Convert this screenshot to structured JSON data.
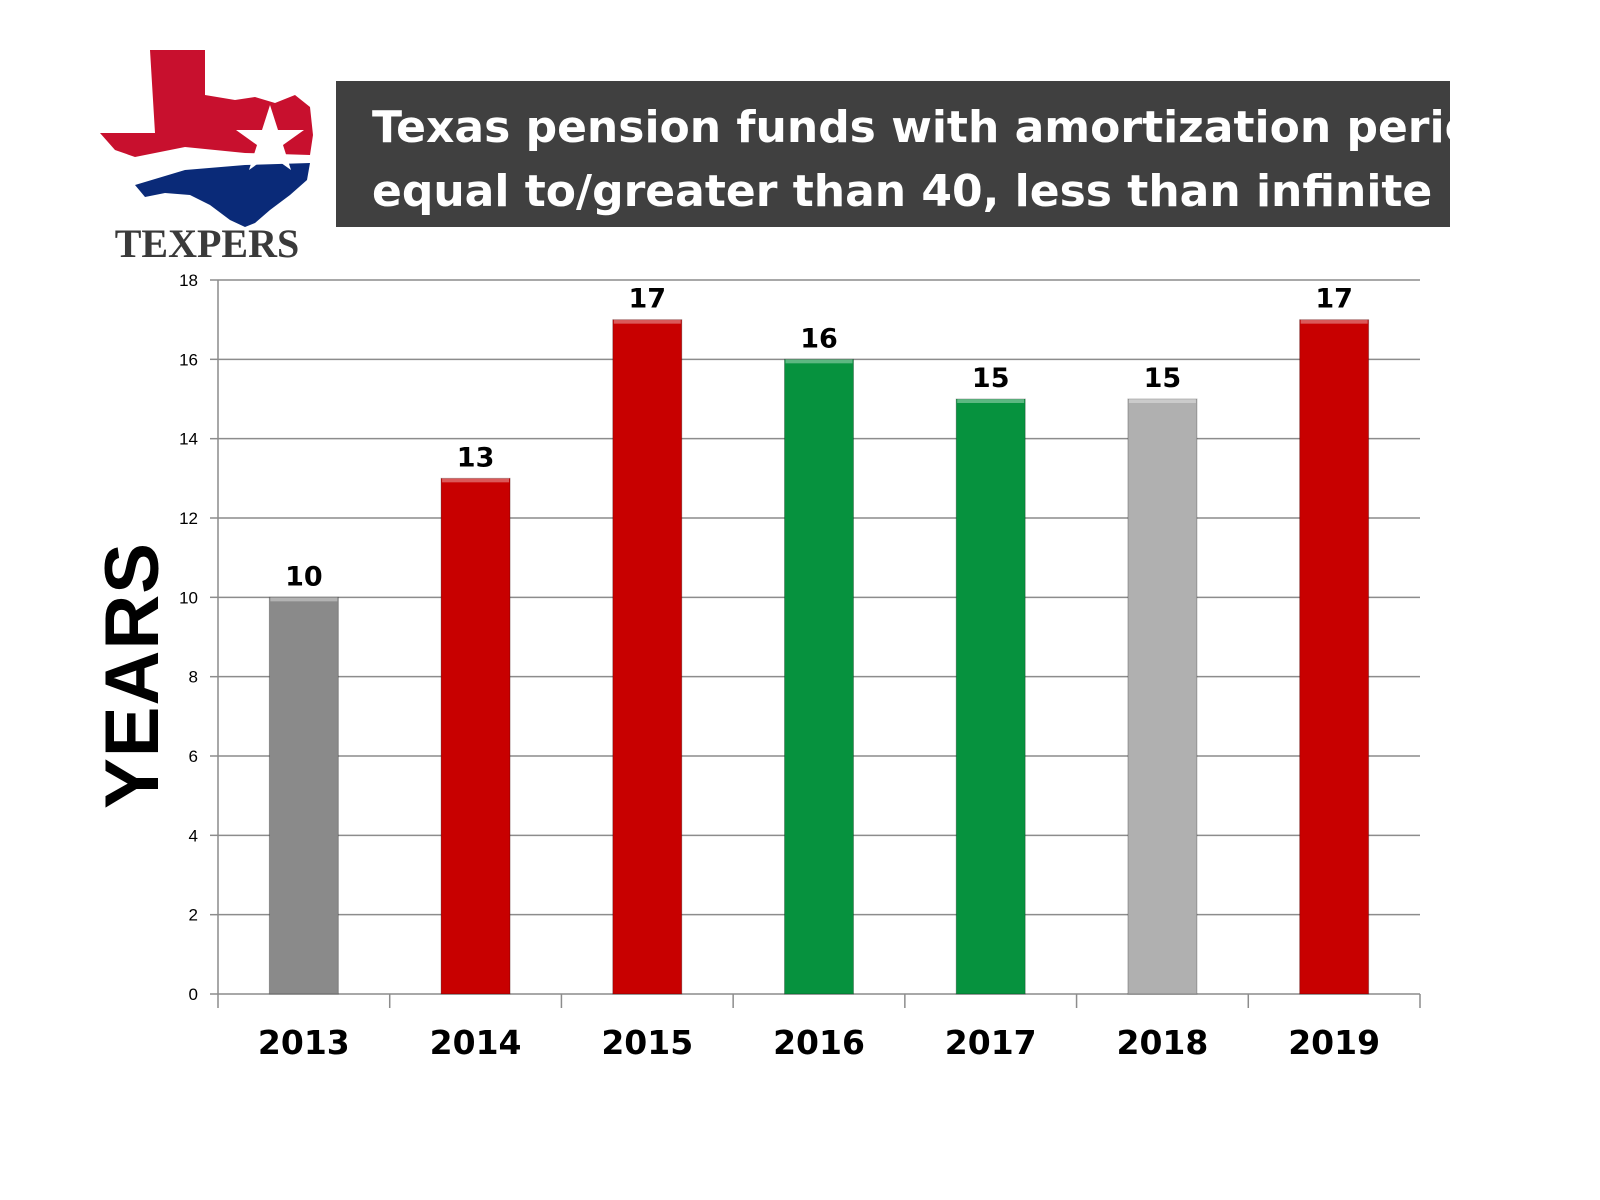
{
  "logo": {
    "text": "TEXPERS",
    "icon": "texas-star-logo"
  },
  "chart_data": {
    "type": "bar",
    "title_lines": [
      "Texas pension funds with amortization periods",
      "equal to/greater than 40, less than infinite"
    ],
    "xlabel": "",
    "ylabel": "YEARS",
    "ylim": [
      0,
      18
    ],
    "yticks": [
      0,
      2,
      4,
      6,
      8,
      10,
      12,
      14,
      16,
      18
    ],
    "grid": true,
    "categories": [
      "2013",
      "2014",
      "2015",
      "2016",
      "2017",
      "2018",
      "2019"
    ],
    "values": [
      10,
      13,
      17,
      16,
      15,
      15,
      17
    ],
    "data_labels": [
      "10",
      "13",
      "17",
      "16",
      "15",
      "15",
      "17"
    ],
    "bar_colors": [
      "#8a8a8a",
      "#c80000",
      "#c80000",
      "#06923e",
      "#06923e",
      "#b0b0b0",
      "#c80000"
    ]
  }
}
